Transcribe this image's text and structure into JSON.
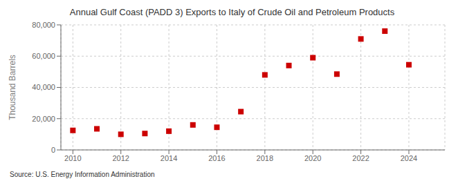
{
  "chart_data": {
    "type": "scatter",
    "title": "Annual Gulf Coast (PADD 3) Exports to Italy of Crude Oil and Petroleum Products",
    "ylabel": "Thousand Barrels",
    "annotations": [
      "Source: U.S. Energy Information Administration"
    ],
    "x": [
      2010,
      2011,
      2012,
      2013,
      2014,
      2015,
      2016,
      2017,
      2018,
      2019,
      2020,
      2021,
      2022,
      2023,
      2024
    ],
    "values": [
      12500,
      13500,
      10000,
      10500,
      12000,
      16000,
      14500,
      24500,
      48000,
      54000,
      59000,
      48500,
      71000,
      76000,
      54500
    ],
    "color": "#cc0000",
    "marker": "square",
    "xlim": [
      2009.5,
      2025.5
    ],
    "xticks": [
      2010,
      2012,
      2014,
      2016,
      2018,
      2020,
      2022,
      2024
    ],
    "ylim": [
      0,
      80000
    ],
    "yticks": [
      0,
      {
        "value": 20000,
        "label": "20,000"
      },
      {
        "value": 40000,
        "label": "40,000"
      },
      {
        "value": 60000,
        "label": "60,000"
      },
      {
        "value": 80000,
        "label": "80,000"
      }
    ],
    "grid": true
  }
}
